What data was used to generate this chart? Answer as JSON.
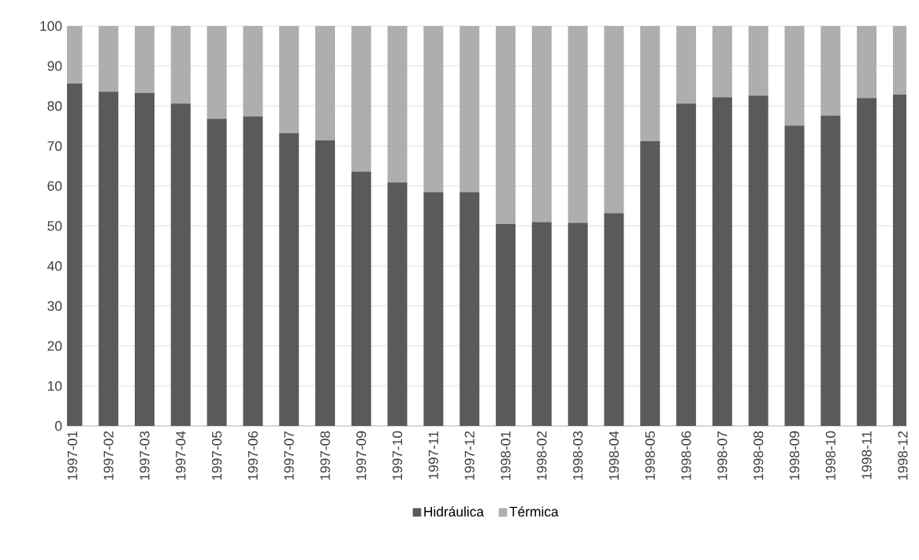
{
  "chart_data": {
    "type": "bar",
    "stacked": true,
    "categories": [
      "1997-01",
      "1997-02",
      "1997-03",
      "1997-04",
      "1997-05",
      "1997-06",
      "1997-07",
      "1997-08",
      "1997-09",
      "1997-10",
      "1997-11",
      "1997-12",
      "1998-01",
      "1998-02",
      "1998-03",
      "1998-04",
      "1998-05",
      "1998-06",
      "1998-07",
      "1998-08",
      "1998-09",
      "1998-10",
      "1998-11",
      "1998-12"
    ],
    "series": [
      {
        "name": "Hidráulica",
        "color": "#5a5a5a",
        "values": [
          85.6,
          83.6,
          83.3,
          80.6,
          76.8,
          77.4,
          73.2,
          71.4,
          63.6,
          60.9,
          58.5,
          58.5,
          50.5,
          51.0,
          50.8,
          53.2,
          71.2,
          80.6,
          82.2,
          82.6,
          75.1,
          77.6,
          82.0,
          82.9
        ]
      },
      {
        "name": "Térmica",
        "color": "#aeaeae",
        "values": [
          14.4,
          16.4,
          16.7,
          19.4,
          23.2,
          22.6,
          26.8,
          28.6,
          36.4,
          39.1,
          41.5,
          41.5,
          49.5,
          49.0,
          49.2,
          46.8,
          28.8,
          19.4,
          17.8,
          17.4,
          24.9,
          22.4,
          18.0,
          17.1
        ]
      }
    ],
    "ylim": [
      0,
      100
    ],
    "yticks": [
      0,
      10,
      20,
      30,
      40,
      50,
      60,
      70,
      80,
      90,
      100
    ],
    "grid": "y",
    "legend": "bottom"
  }
}
